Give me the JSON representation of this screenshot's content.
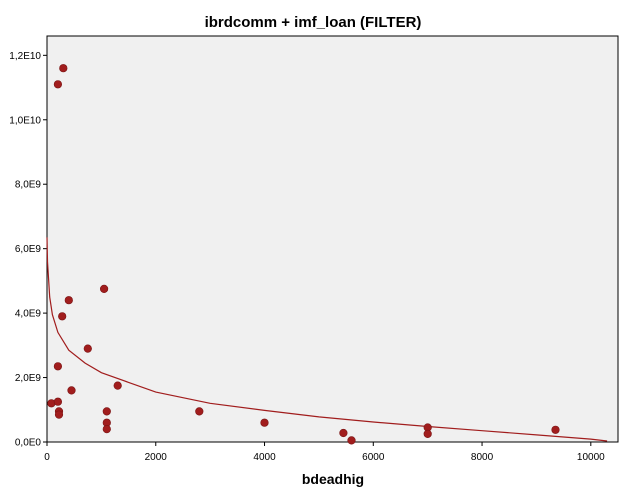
{
  "chart_data": {
    "type": "scatter",
    "title": "ibrdcomm + imf_loan (FILTER)",
    "xlabel": "bdeadhig",
    "ylabel": "",
    "xlim": [
      0,
      10500
    ],
    "ylim": [
      0,
      12600000000.0
    ],
    "x_ticks": [
      0,
      2000,
      4000,
      6000,
      8000,
      10000
    ],
    "x_tick_labels": [
      "0",
      "2000",
      "4000",
      "6000",
      "8000",
      "10000"
    ],
    "y_ticks": [
      0,
      2000000000.0,
      4000000000.0,
      6000000000.0,
      8000000000.0,
      10000000000.0,
      12000000000.0
    ],
    "y_tick_labels": [
      "0,0E0",
      "2,0E9",
      "4,0E9",
      "6,0E9",
      "8,0E9",
      "1,0E10",
      "1,2E10"
    ],
    "grid": false,
    "legend": "none",
    "series": [
      {
        "x": [
          300,
          200,
          400,
          1050,
          280,
          750,
          200,
          450,
          1300,
          80,
          200,
          220,
          220,
          1100,
          1100,
          1100,
          2800,
          4000,
          5450,
          5600,
          7000,
          7000,
          9350
        ],
        "y": [
          11600000000.0,
          11100000000.0,
          4400000000.0,
          4750000000.0,
          3900000000.0,
          2900000000.0,
          2350000000.0,
          1600000000.0,
          1750000000.0,
          1200000000.0,
          1250000000.0,
          950000000.0,
          850000000.0,
          950000000.0,
          600000000.0,
          400000000.0,
          950000000.0,
          600000000.0,
          280000000.0,
          50000000.0,
          450000000.0,
          250000000.0,
          380000000.0
        ]
      }
    ],
    "fit_line": {
      "type": "logarithmic",
      "x": [
        0,
        10,
        50,
        100,
        200,
        400,
        700,
        1000,
        2000,
        3000,
        4000,
        5000,
        6000,
        7000,
        8000,
        9000,
        10000,
        10300
      ],
      "y": [
        6350000000.0,
        5600000000.0,
        4500000000.0,
        3950000000.0,
        3400000000.0,
        2850000000.0,
        2450000000.0,
        2150000000.0,
        1550000000.0,
        1200000000.0,
        980000000.0,
        780000000.0,
        620000000.0,
        480000000.0,
        350000000.0,
        220000000.0,
        90000000.0,
        30000000.0
      ]
    },
    "colors": {
      "points": "#a11d1d",
      "fit_line": "#a11d1d",
      "plot_background": "#f0f0f0",
      "frame": "#000000"
    }
  }
}
